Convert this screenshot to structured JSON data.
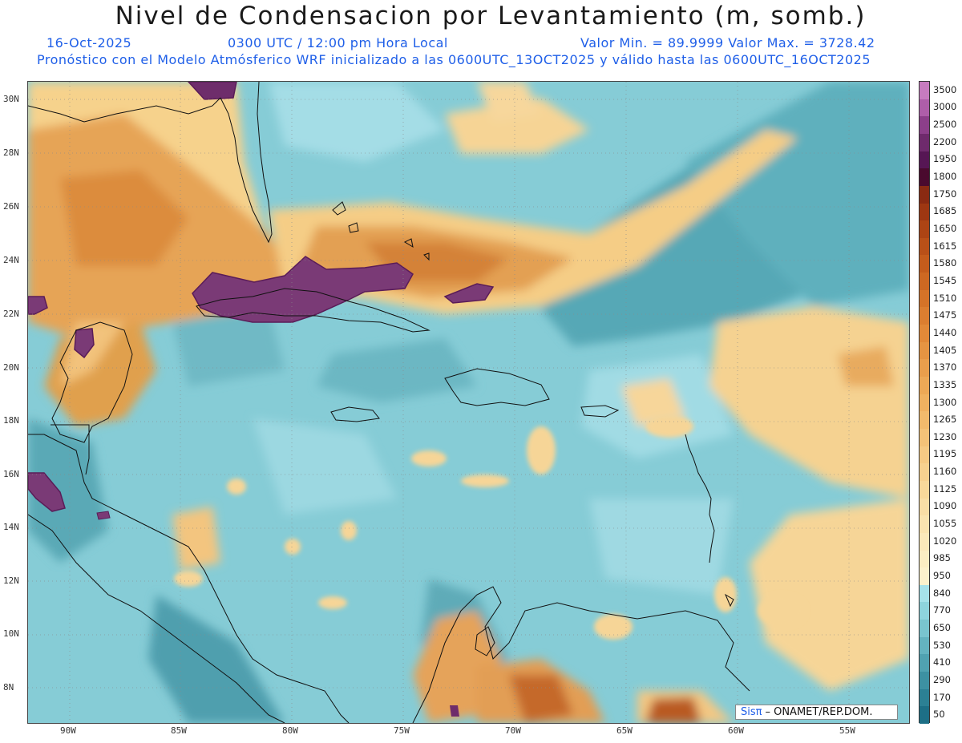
{
  "header": {
    "title": "Nivel de Condensacion por Levantamiento (m, somb.)",
    "date": "16-Oct-2025",
    "time": "0300 UTC / 12:00 pm Hora Local",
    "minmax": "Valor Min. = 89.9999   Valor Max. = 3728.42",
    "model": "Pronóstico con el Modelo Atmósferico WRF inicializado a las 0600UTC_13OCT2025 y válido hasta las  0600UTC_16OCT2025"
  },
  "map": {
    "lat_labels": [
      "30N",
      "28N",
      "26N",
      "24N",
      "22N",
      "20N",
      "18N",
      "16N",
      "14N",
      "12N",
      "10N",
      "8N"
    ],
    "lon_labels": [
      "90W",
      "85W",
      "80W",
      "75W",
      "70W",
      "65W",
      "60W",
      "55W"
    ],
    "credit_brand": "Sisπ",
    "credit_text": "– ONAMET/REP.DOM."
  },
  "colorbar": {
    "labels": [
      "3500",
      "3000",
      "2500",
      "2200",
      "1950",
      "1800",
      "1750",
      "1685",
      "1650",
      "1615",
      "1580",
      "1545",
      "1510",
      "1475",
      "1440",
      "1405",
      "1370",
      "1335",
      "1300",
      "1265",
      "1230",
      "1195",
      "1160",
      "1125",
      "1090",
      "1055",
      "1020",
      "985",
      "950",
      "840",
      "770",
      "650",
      "530",
      "410",
      "290",
      "170",
      "50"
    ],
    "colors": [
      "#c77bbf",
      "#ae5ea9",
      "#8c3f8a",
      "#6e2a6c",
      "#561654",
      "#4a0a2e",
      "#8a2a12",
      "#9e3712",
      "#ad4414",
      "#b95018",
      "#c45c1c",
      "#cd6822",
      "#d57328",
      "#dc7e30",
      "#e28938",
      "#e69442",
      "#ea9e4c",
      "#eda856",
      "#f0b160",
      "#f2ba6c",
      "#f4c278",
      "#f6ca84",
      "#f7d18f",
      "#f8d89a",
      "#f9dea6",
      "#fae4b0",
      "#fbe9ba",
      "#fbeec3",
      "#fcf2cc",
      "#a6e2ea",
      "#8ed4dd",
      "#79c4cf",
      "#64b3c0",
      "#50a2b1",
      "#3d91a2",
      "#2c8094",
      "#1d6f86"
    ]
  }
}
